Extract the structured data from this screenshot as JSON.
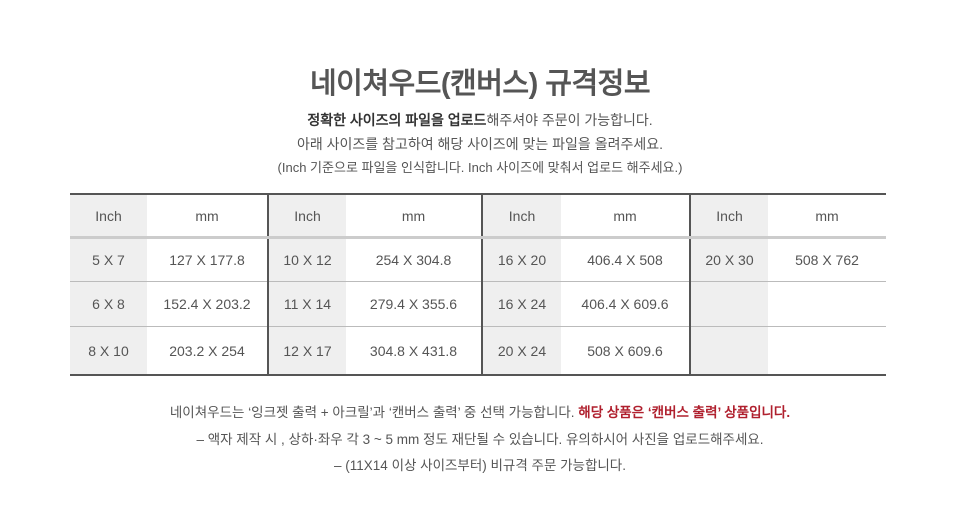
{
  "title": "네이쳐우드(캔버스) 규격정보",
  "intro": {
    "line1_bold": "정확한 사이즈의 파일을 업로드",
    "line1_rest": "해주셔야 주문이 가능합니다.",
    "line2": "아래 사이즈를 참고하여 해당 사이즈에 맞는 파일을 올려주세요.",
    "line3": "(Inch 기준으로 파일을 인식합니다. Inch 사이즈에 맞춰서 업로드 해주세요.)"
  },
  "table": {
    "headers": [
      "Inch",
      "mm",
      "Inch",
      "mm",
      "Inch",
      "mm",
      "Inch",
      "mm"
    ],
    "rows": [
      [
        "5 X 7",
        "127 X 177.8",
        "10 X 12",
        "254 X 304.8",
        "16 X 20",
        "406.4 X 508",
        "20 X 30",
        "508 X 762"
      ],
      [
        "6 X 8",
        "152.4 X 203.2",
        "11 X 14",
        "279.4 X 355.6",
        "16 X 24",
        "406.4 X 609.6",
        "",
        ""
      ],
      [
        "8 X 10",
        "203.2 X 254",
        "12 X 17",
        "304.8 X 431.8",
        "20 X 24",
        "508 X 609.6",
        "",
        ""
      ]
    ]
  },
  "notes": {
    "line1_plain": "네이쳐우드는 ‘잉크젯 출력 + 아크릴’과 ‘캔버스 출력’ 중 선택 가능합니다. ",
    "line1_highlight": "해당 상품은 ‘캔버스 출력’ 상품입니다.",
    "line2": "– 액자 제작 시 , 상하·좌우  각 3 ~ 5 mm 정도 재단될 수 있습니다. 유의하시어 사진을 업로드해주세요.",
    "line3": "– (11X14 이상 사이즈부터) 비규격 주문 가능합니다."
  },
  "colors": {
    "highlight": "#b0202e",
    "inch_column_bg": "#efefef"
  }
}
